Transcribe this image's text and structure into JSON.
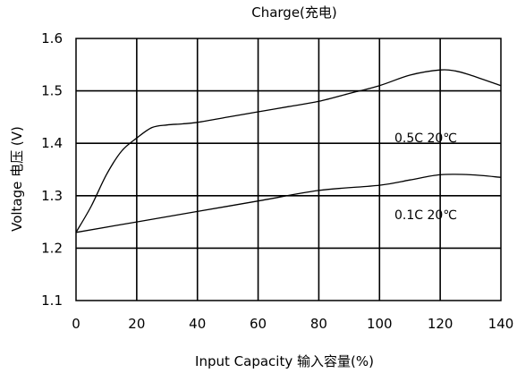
{
  "chart_data": {
    "type": "line",
    "title": "Charge(充电)",
    "xlabel": "Input Capacity  输入容量(%)",
    "ylabel": "Voltage 电压 (V)",
    "xlim": [
      0,
      140
    ],
    "ylim": [
      1.1,
      1.6
    ],
    "x_ticks": [
      0,
      20,
      40,
      60,
      80,
      100,
      120,
      140
    ],
    "y_ticks": [
      1.1,
      1.2,
      1.3,
      1.4,
      1.5,
      1.6
    ],
    "x_tick_labels": [
      "0",
      "20",
      "40",
      "60",
      "80",
      "100",
      "120",
      "140"
    ],
    "y_tick_labels": [
      "1.1",
      "1.2",
      "1.3",
      "1.4",
      "1.5",
      "1.6"
    ],
    "grid": true,
    "series": [
      {
        "name": "0.5C 20℃",
        "x": [
          0,
          5,
          10,
          15,
          20,
          25,
          30,
          35,
          40,
          50,
          60,
          70,
          80,
          90,
          100,
          110,
          120,
          125,
          130,
          140
        ],
        "y": [
          1.23,
          1.28,
          1.34,
          1.385,
          1.41,
          1.43,
          1.435,
          1.437,
          1.44,
          1.45,
          1.46,
          1.47,
          1.48,
          1.495,
          1.51,
          1.53,
          1.54,
          1.538,
          1.53,
          1.51
        ]
      },
      {
        "name": "0.1C 20℃",
        "x": [
          0,
          20,
          40,
          60,
          80,
          100,
          110,
          120,
          130,
          140
        ],
        "y": [
          1.23,
          1.25,
          1.27,
          1.29,
          1.31,
          1.32,
          1.33,
          1.34,
          1.34,
          1.335
        ]
      }
    ]
  }
}
